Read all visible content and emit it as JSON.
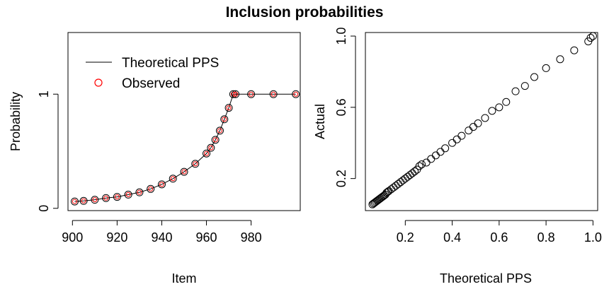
{
  "title": "Inclusion probabilities",
  "chart_data": [
    {
      "type": "line+scatter",
      "xlabel": "Item",
      "ylabel": "Probability",
      "xlim": [
        898,
        1002
      ],
      "ylim": [
        -0.02,
        1.54
      ],
      "xticks": [
        900,
        920,
        940,
        960,
        980
      ],
      "yticks": [
        0,
        1
      ],
      "legend": {
        "position": "top-left",
        "items": [
          {
            "label": "Theoretical PPS",
            "kind": "line",
            "color": "#000000"
          },
          {
            "label": "Observed",
            "kind": "point",
            "color": "#ff0000"
          }
        ]
      },
      "series": [
        {
          "name": "Theoretical PPS",
          "color": "#000000",
          "x": [
            901,
            905,
            910,
            915,
            920,
            925,
            930,
            935,
            940,
            945,
            950,
            955,
            960,
            962,
            964,
            966,
            968,
            970,
            972,
            973,
            980,
            990,
            1000
          ],
          "y": [
            0.06,
            0.065,
            0.075,
            0.09,
            0.1,
            0.12,
            0.14,
            0.17,
            0.21,
            0.26,
            0.32,
            0.39,
            0.48,
            0.53,
            0.6,
            0.68,
            0.78,
            0.88,
            1.0,
            1.0,
            1.0,
            1.0,
            1.0
          ]
        },
        {
          "name": "Observed",
          "color": "#ff0000",
          "x": [
            901,
            905,
            910,
            915,
            920,
            925,
            930,
            935,
            940,
            945,
            950,
            955,
            960,
            962,
            964,
            966,
            968,
            970,
            972,
            973,
            980,
            990,
            1000
          ],
          "y": [
            0.06,
            0.065,
            0.075,
            0.09,
            0.1,
            0.12,
            0.14,
            0.17,
            0.21,
            0.26,
            0.32,
            0.39,
            0.48,
            0.53,
            0.6,
            0.68,
            0.78,
            0.88,
            1.0,
            1.0,
            1.0,
            1.0,
            1.0
          ]
        }
      ]
    },
    {
      "type": "scatter",
      "xlabel": "Theoretical PPS",
      "ylabel": "Actual",
      "xlim": [
        0.03,
        1.02
      ],
      "ylim": [
        0.02,
        1.02
      ],
      "xticks": [
        "0.2",
        "0.4",
        "0.6",
        "0.8",
        "1.0"
      ],
      "yticks": [
        "0.2",
        "0.6",
        "1.0"
      ],
      "points": {
        "x": [
          0.06,
          0.065,
          0.07,
          0.075,
          0.08,
          0.085,
          0.09,
          0.095,
          0.1,
          0.105,
          0.11,
          0.115,
          0.12,
          0.125,
          0.13,
          0.14,
          0.15,
          0.16,
          0.17,
          0.18,
          0.19,
          0.2,
          0.21,
          0.22,
          0.23,
          0.24,
          0.25,
          0.26,
          0.27,
          0.29,
          0.31,
          0.33,
          0.35,
          0.37,
          0.4,
          0.42,
          0.44,
          0.47,
          0.49,
          0.51,
          0.54,
          0.57,
          0.6,
          0.63,
          0.67,
          0.71,
          0.75,
          0.8,
          0.86,
          0.92,
          0.98,
          0.99,
          1.0
        ],
        "y": [
          0.055,
          0.06,
          0.065,
          0.07,
          0.075,
          0.08,
          0.085,
          0.09,
          0.095,
          0.1,
          0.105,
          0.11,
          0.12,
          0.125,
          0.13,
          0.14,
          0.15,
          0.16,
          0.17,
          0.18,
          0.19,
          0.2,
          0.21,
          0.22,
          0.23,
          0.24,
          0.25,
          0.27,
          0.28,
          0.29,
          0.31,
          0.33,
          0.35,
          0.37,
          0.4,
          0.42,
          0.44,
          0.47,
          0.49,
          0.51,
          0.54,
          0.58,
          0.6,
          0.63,
          0.69,
          0.72,
          0.77,
          0.82,
          0.87,
          0.92,
          0.97,
          0.99,
          1.0
        ]
      }
    }
  ]
}
